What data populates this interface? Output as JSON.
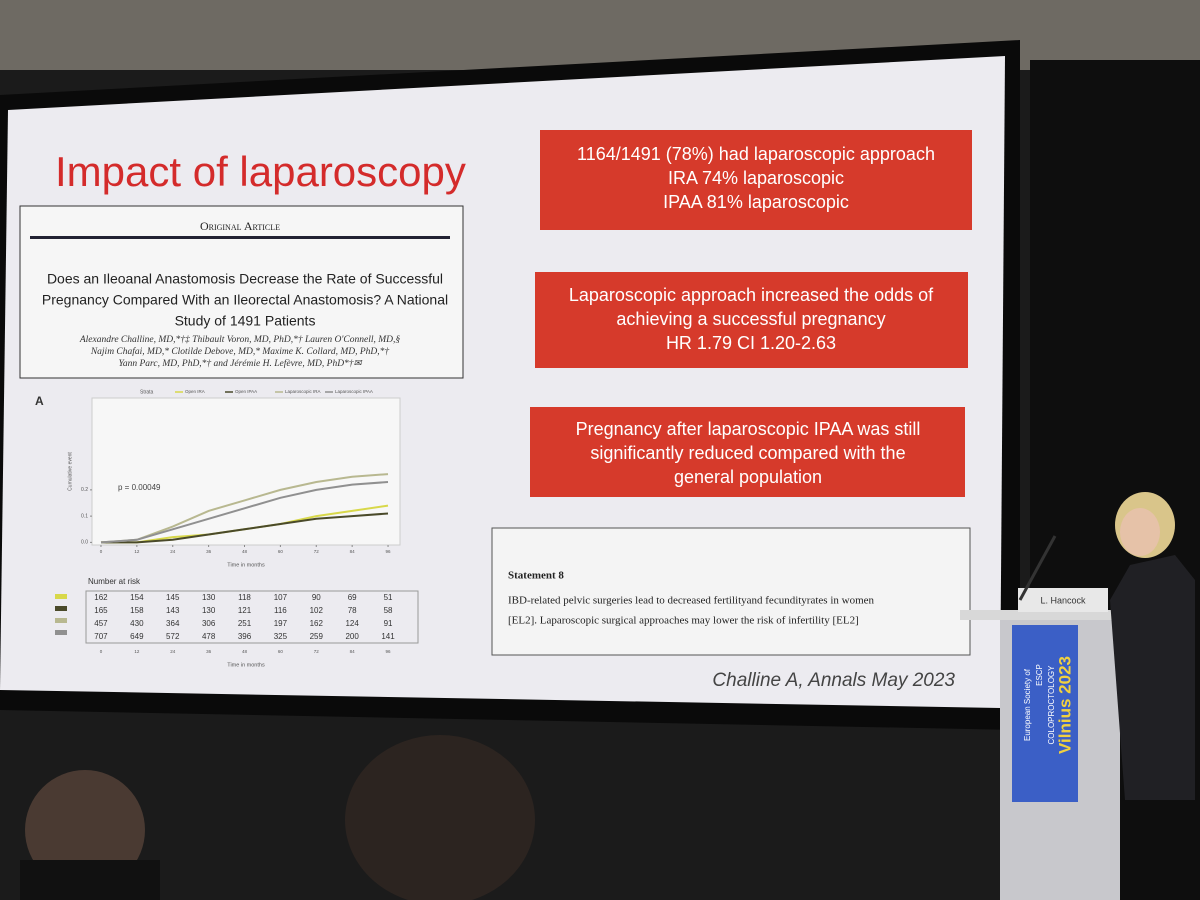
{
  "slide": {
    "title": "Impact of laparoscopy",
    "article": {
      "section": "Original Article",
      "title": [
        "Does an Ileoanal Anastomosis Decrease the Rate of Successful",
        "Pregnancy Compared With an Ileorectal Anastomosis? A National",
        "Study of 1491 Patients"
      ],
      "authors": [
        "Alexandre Challine, MD,*†‡ Thibault Voron, MD, PhD,*† Lauren O'Connell, MD,§",
        "Najim Chafai, MD,* Clotilde Debove, MD,* Maxime K. Collard, MD, PhD,*†",
        "Yann Parc, MD, PhD,*† and Jérémie H. Lefèvre, MD, PhD*†✉"
      ]
    },
    "findings": [
      [
        "1164/1491 (78%) had laparoscopic approach",
        "IRA 74% laparoscopic",
        "IPAA 81% laparoscopic"
      ],
      [
        "Laparoscopic approach increased the odds of",
        "achieving a successful pregnancy",
        "HR 1.79 CI 1.20-2.63"
      ],
      [
        "Pregnancy after laparoscopic IPAA was still",
        "significantly reduced compared with the",
        "general population"
      ]
    ],
    "statement": {
      "heading": "Statement 8",
      "text": [
        "IBD-related pelvic surgeries lead to decreased fertilityand fecundityrates in women",
        "[EL2]. Laparoscopic surgical approaches may lower the risk of infertility [EL2]"
      ]
    },
    "citation": "Challine A, Annals  May 2023"
  },
  "km_plot": {
    "panel": "A",
    "legend_title": "Strata",
    "y_label": "Cumulative event",
    "x_label": "Time in months",
    "annotation": "p = 0.00049",
    "x": [
      0,
      12,
      24,
      36,
      48,
      60,
      72,
      84,
      96
    ],
    "xlim": [
      -3,
      100
    ],
    "xticks": [
      0,
      12,
      24,
      36,
      48,
      60,
      72,
      84,
      96
    ],
    "ylim": [
      -0.01,
      0.55
    ],
    "yticks": [
      {
        "value": 0,
        "label": "0.0"
      },
      0.1,
      0.2
    ],
    "series": [
      {
        "name": "Open IRA",
        "color": "#d8d84a",
        "values": [
          0,
          0,
          0.02,
          0.03,
          0.05,
          0.07,
          0.1,
          0.12,
          0.14
        ]
      },
      {
        "name": "Open IPAA",
        "color": "#4a4a2a",
        "values": [
          0,
          0,
          0.01,
          0.03,
          0.05,
          0.07,
          0.09,
          0.1,
          0.11
        ]
      },
      {
        "name": "Laparoscopic IRA",
        "color": "#b8b890",
        "values": [
          0,
          0.01,
          0.06,
          0.12,
          0.16,
          0.2,
          0.23,
          0.25,
          0.26
        ]
      },
      {
        "name": "Laparoscopic IPAA",
        "color": "#909090",
        "values": [
          0,
          0.01,
          0.05,
          0.09,
          0.13,
          0.17,
          0.2,
          0.22,
          0.23
        ]
      }
    ],
    "risk_table": {
      "title": "Number at risk",
      "rows": [
        [
          162,
          154,
          145,
          130,
          118,
          107,
          90,
          69,
          51
        ],
        [
          165,
          158,
          143,
          130,
          121,
          116,
          102,
          78,
          58
        ],
        [
          457,
          430,
          364,
          306,
          251,
          197,
          162,
          124,
          91
        ],
        [
          707,
          649,
          572,
          478,
          396,
          325,
          259,
          200,
          141
        ]
      ]
    }
  },
  "podium": {
    "name_card": "L. Hancock",
    "banner": [
      "European Society of",
      "ESCP",
      "COLOPROCTOLOGY",
      "Vilnius 2023"
    ]
  }
}
